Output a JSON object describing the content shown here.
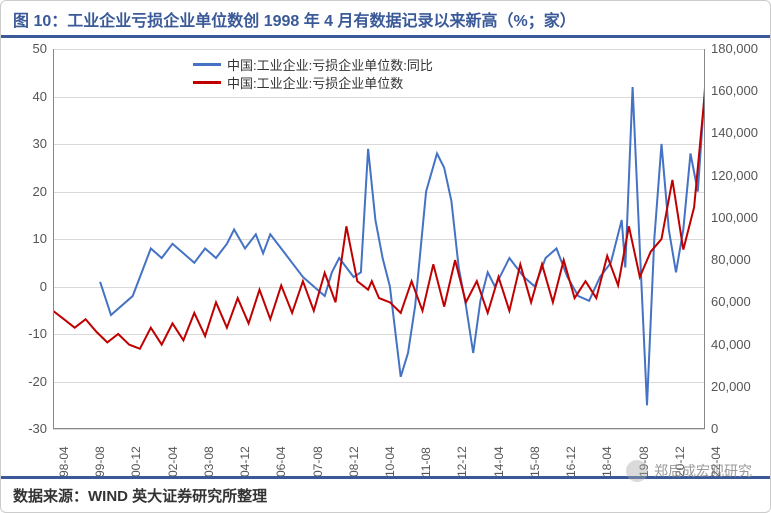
{
  "title": "图 10：工业企业亏损企业单位数创 1998 年 4 月有数据记录以来新高（%；家）",
  "source": "数据来源：WIND  英大证券研究所整理",
  "watermark": "郑后成宏观研究",
  "chart": {
    "type": "dual-axis-line",
    "background_color": "#ffffff",
    "grid_color": "#d9d9d9",
    "axis_color": "#888888",
    "title_color": "#3a5998",
    "title_fontsize": 16,
    "label_fontsize": 13,
    "tick_fontsize": 12,
    "text_color": "#555555",
    "line_width": 2,
    "x_labels": [
      "98-04",
      "99-08",
      "00-12",
      "02-04",
      "03-08",
      "04-12",
      "06-04",
      "07-08",
      "08-12",
      "10-04",
      "11-08",
      "12-12",
      "14-04",
      "15-08",
      "16-12",
      "18-04",
      "19-08",
      "20-12",
      "22-04"
    ],
    "left_axis": {
      "min": -30,
      "max": 50,
      "step": 10,
      "unit": "%"
    },
    "right_axis": {
      "min": 0,
      "max": 180000,
      "step": 20000,
      "unit": "家"
    },
    "legend": [
      {
        "label": "中国:工业企业:亏损企业单位数:同比",
        "color": "#4472c4"
      },
      {
        "label": "中国:工业企业:亏损企业单位数",
        "color": "#c00000"
      }
    ],
    "series_blue": {
      "name": "中国:工业企业:亏损企业单位数:同比",
      "color": "#4472c4",
      "axis": "left",
      "x": [
        0,
        0.8,
        1.3,
        1.6,
        2.2,
        2.5,
        2.7,
        3.0,
        3.3,
        3.6,
        3.9,
        4.2,
        4.5,
        4.8,
        5.0,
        5.3,
        5.6,
        5.8,
        6.0,
        6.3,
        6.6,
        6.9,
        7.2,
        7.5,
        7.7,
        7.9,
        8.1,
        8.3,
        8.5,
        8.7,
        8.9,
        9.1,
        9.3,
        9.6,
        9.8,
        10.0,
        10.3,
        10.6,
        10.8,
        11.0,
        11.2,
        11.4,
        11.6,
        11.8,
        12.0,
        12.2,
        12.4,
        12.6,
        12.8,
        13.0,
        13.3,
        13.6,
        13.9,
        14.2,
        14.5,
        14.8,
        15.1,
        15.4,
        15.7,
        15.8,
        16.0,
        16.2,
        16.4,
        16.6,
        16.8,
        17.0,
        17.2,
        17.4,
        17.6,
        17.8,
        18.0
      ],
      "y": [
        null,
        null,
        1,
        -6,
        -2,
        4,
        8,
        6,
        9,
        7,
        5,
        8,
        6,
        9,
        12,
        8,
        11,
        7,
        11,
        8,
        5,
        2,
        0,
        -2,
        3,
        6,
        4,
        2,
        3,
        29,
        14,
        6,
        0,
        -19,
        -14,
        -4,
        20,
        28,
        25,
        18,
        4,
        -4,
        -14,
        -3,
        3,
        0,
        3,
        6,
        4,
        2,
        0,
        6,
        8,
        2,
        -2,
        -3,
        2,
        5,
        14,
        4,
        42,
        8,
        -25,
        10,
        30,
        12,
        3,
        12,
        28,
        20,
        42
      ]
    },
    "series_red": {
      "name": "中国:工业企业:亏损企业单位数",
      "color": "#c00000",
      "axis": "right",
      "x": [
        0,
        0.3,
        0.6,
        0.9,
        1.2,
        1.5,
        1.8,
        2.1,
        2.4,
        2.7,
        3.0,
        3.3,
        3.6,
        3.9,
        4.2,
        4.5,
        4.8,
        5.1,
        5.4,
        5.7,
        6.0,
        6.3,
        6.6,
        6.9,
        7.2,
        7.5,
        7.8,
        8.1,
        8.4,
        8.7,
        8.8,
        9.0,
        9.3,
        9.6,
        9.9,
        10.2,
        10.5,
        10.8,
        11.1,
        11.4,
        11.7,
        12.0,
        12.3,
        12.6,
        12.9,
        13.2,
        13.5,
        13.8,
        14.1,
        14.4,
        14.7,
        15.0,
        15.3,
        15.6,
        15.9,
        16.2,
        16.5,
        16.8,
        17.1,
        17.4,
        17.7,
        18.0
      ],
      "y": [
        56000,
        52000,
        48000,
        52000,
        46000,
        41000,
        45000,
        40000,
        38000,
        48000,
        40000,
        50000,
        42000,
        55000,
        44000,
        60000,
        48000,
        62000,
        50000,
        66000,
        52000,
        68000,
        55000,
        70000,
        56000,
        74000,
        60000,
        96000,
        70000,
        66000,
        70000,
        62000,
        60000,
        55000,
        70000,
        56000,
        78000,
        58000,
        80000,
        60000,
        70000,
        55000,
        72000,
        56000,
        78000,
        60000,
        78000,
        60000,
        80000,
        62000,
        70000,
        62000,
        82000,
        68000,
        96000,
        72000,
        84000,
        90000,
        118000,
        85000,
        105000,
        160000
      ]
    }
  }
}
